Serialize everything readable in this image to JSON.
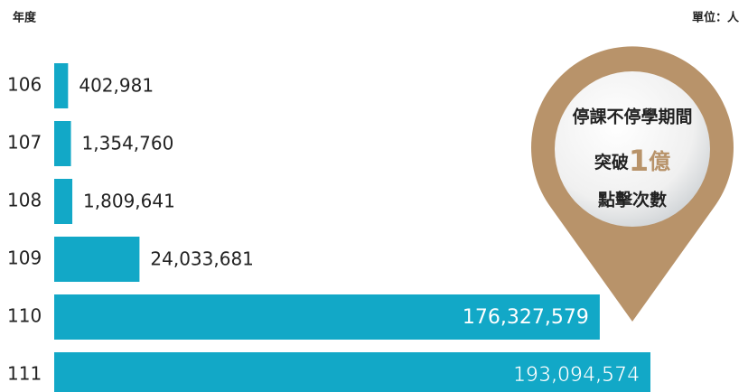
{
  "chart_data": {
    "type": "bar",
    "orientation": "horizontal",
    "axis_title": "年度",
    "unit": "單位：人",
    "categories": [
      "106",
      "107",
      "108",
      "109",
      "110",
      "111"
    ],
    "values": [
      402981,
      1354760,
      1809641,
      24033681,
      176327579,
      193094574
    ],
    "value_labels": [
      "402,981",
      "1,354,760",
      "1,809,641",
      "24,033,681",
      "176,327,579",
      "193,094,574"
    ],
    "color": "#12a8c7",
    "annotation": {
      "line1": "停課不停學期間",
      "line2a": "突破",
      "line2b": "1",
      "line2c": "億",
      "line3": "點擊次數",
      "color": "#b8936a"
    }
  }
}
